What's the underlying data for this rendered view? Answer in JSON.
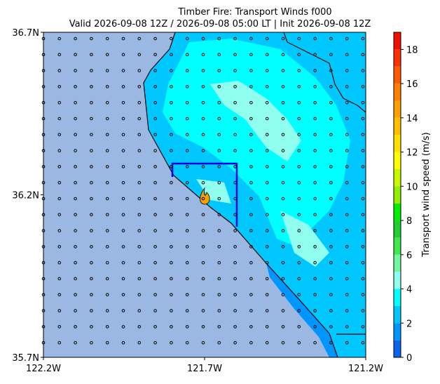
{
  "chart_data": {
    "type": "map",
    "title": "Timber Fire: Transport Winds f000",
    "subtitle": "Valid 2026-09-08 12Z / 2026-09-08 05:00 LT | Init 2026-09-08 12Z",
    "xlim": [
      -122.2,
      -121.2
    ],
    "xticks": [
      {
        "value": -122.2,
        "label": "122.2W"
      },
      {
        "value": -121.7,
        "label": "121.7W"
      },
      {
        "value": -121.2,
        "label": "121.2W"
      }
    ],
    "ylim": [
      35.7,
      36.7
    ],
    "yticks": [
      {
        "value": 35.7,
        "label": "35.7N"
      },
      {
        "value": 36.2,
        "label": "36.2N"
      },
      {
        "value": 36.7,
        "label": "36.7N"
      }
    ],
    "colorbar": {
      "label": "Transport wind speed (m/s)",
      "lim": [
        0,
        19
      ],
      "ticks": [
        0,
        2,
        4,
        6,
        8,
        10,
        12,
        14,
        16,
        18
      ],
      "colors": [
        "#0a64f0",
        "#0096ff",
        "#00c8ff",
        "#00ffff",
        "#90fff0",
        "#70f8a0",
        "#40e850",
        "#20d030",
        "#00f000",
        "#90f000",
        "#c8f800",
        "#ffff00",
        "#ffe000",
        "#ffc000",
        "#ffa000",
        "#ff8000",
        "#ff5a00",
        "#ff3000",
        "#f01000"
      ]
    }
  }
}
